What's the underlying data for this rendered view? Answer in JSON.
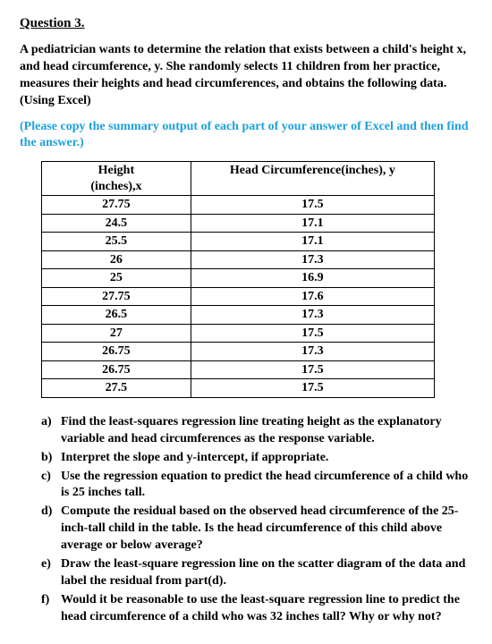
{
  "title": "Question 3.",
  "intro": "A pediatrician wants to determine the relation that exists between a child's height x, and head circumference, y. She randomly selects 11 children from her practice, measures their heights and head circumferences, and obtains the following data. (Using Excel)",
  "note": "(Please copy the summary output of each part of your answer of Excel and then find the answer.)",
  "note_color": "#1da1dc",
  "table": {
    "col1_header_line1": "Height",
    "col1_header_line2": "(inches),x",
    "col2_header": "Head Circumference(inches), y",
    "rows": [
      {
        "x": "27.75",
        "y": "17.5"
      },
      {
        "x": "24.5",
        "y": "17.1"
      },
      {
        "x": "25.5",
        "y": "17.1"
      },
      {
        "x": "26",
        "y": "17.3"
      },
      {
        "x": "25",
        "y": "16.9"
      },
      {
        "x": "27.75",
        "y": "17.6"
      },
      {
        "x": "26.5",
        "y": "17.3"
      },
      {
        "x": "27",
        "y": "17.5"
      },
      {
        "x": "26.75",
        "y": "17.3"
      },
      {
        "x": "26.75",
        "y": "17.5"
      },
      {
        "x": "27.5",
        "y": "17.5"
      }
    ]
  },
  "questions": [
    {
      "marker": "a)",
      "text": "Find the least-squares regression line treating height as the explanatory variable and head circumferences as the response variable."
    },
    {
      "marker": "b)",
      "text": "Interpret the slope and y-intercept, if appropriate."
    },
    {
      "marker": "c)",
      "text": "Use the regression equation to predict the head circumference of a child who is 25 inches tall."
    },
    {
      "marker": "d)",
      "text": "Compute the residual based on the observed head circumference of the 25-inch-tall child in the table. Is the head circumference of this child above average or below average?"
    },
    {
      "marker": "e)",
      "text": "Draw the least-square regression line on the scatter diagram of the data and label the residual from part(d)."
    },
    {
      "marker": "f)",
      "text": "Would it be reasonable to use the least-square regression line to predict the head circumference of a child who was 32 inches tall? Why or why not?"
    }
  ]
}
